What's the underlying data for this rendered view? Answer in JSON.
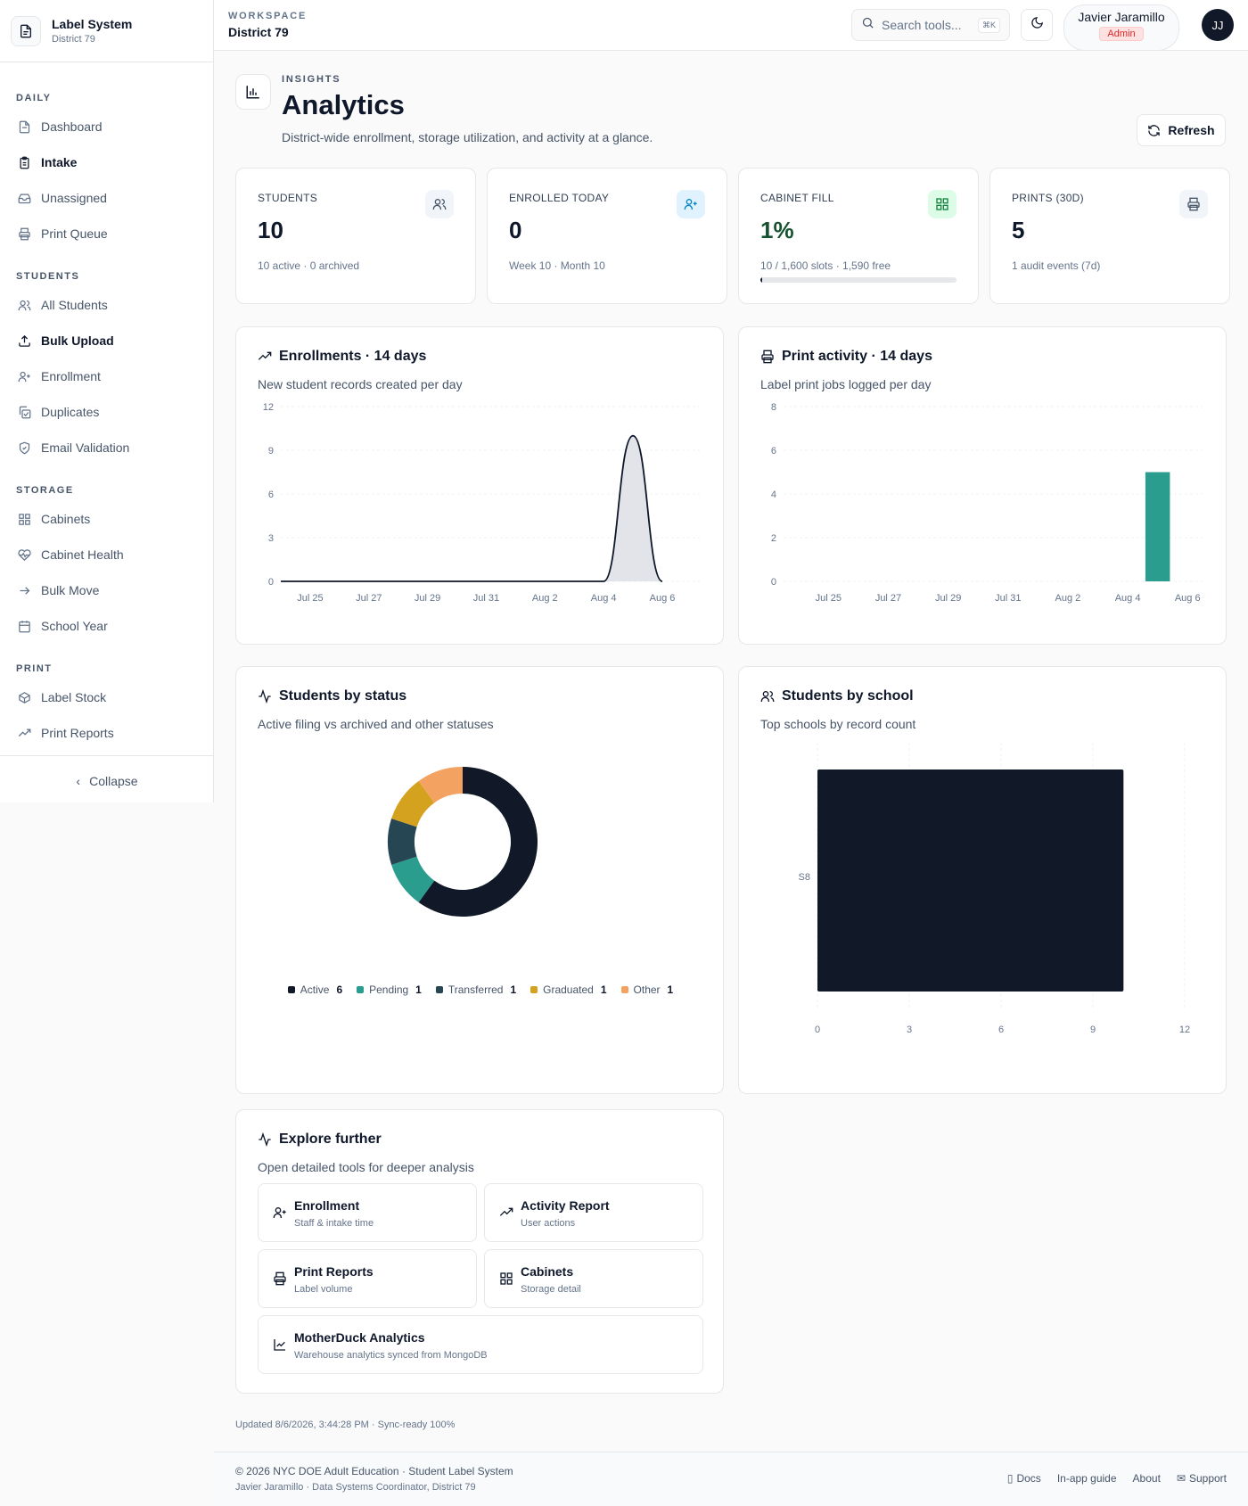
{
  "brand": {
    "title": "Label System",
    "subtitle": "District 79"
  },
  "sidebar": {
    "sections": [
      {
        "label": "DAILY",
        "items": [
          "Dashboard",
          "Intake",
          "Unassigned",
          "Print Queue"
        ]
      },
      {
        "label": "STUDENTS",
        "items": [
          "All Students",
          "Bulk Upload",
          "Enrollment",
          "Duplicates",
          "Email Validation"
        ]
      },
      {
        "label": "STORAGE",
        "items": [
          "Cabinets",
          "Cabinet Health",
          "Bulk Move",
          "School Year"
        ]
      },
      {
        "label": "PRINT",
        "items": [
          "Label Stock",
          "Print Reports"
        ]
      }
    ],
    "collapse_label": "Collapse"
  },
  "header": {
    "workspace_label": "WORKSPACE",
    "workspace_name": "District 79",
    "search_placeholder": "Search tools...",
    "search_kbd": "⌘K",
    "user_name": "Javier Jaramillo",
    "user_role": "Admin",
    "avatar_initials": "JJ"
  },
  "page": {
    "eyebrow": "INSIGHTS",
    "title": "Analytics",
    "description": "District-wide enrollment, storage utilization, and activity at a glance.",
    "refresh_label": "Refresh"
  },
  "kpis": [
    {
      "label": "STUDENTS",
      "value": "10",
      "sub": "10 active · 0 archived",
      "icon": "users-icon"
    },
    {
      "label": "ENROLLED TODAY",
      "value": "0",
      "sub": "Week 10 · Month 10",
      "icon": "user-plus-icon"
    },
    {
      "label": "CABINET FILL",
      "value": "1%",
      "sub": "10 / 1,600 slots · 1,590 free",
      "icon": "grid-icon",
      "fill_fraction": 0.00625
    },
    {
      "label": "PRINTS (30D)",
      "value": "5",
      "sub": "1 audit events (7d)",
      "icon": "printer-icon"
    }
  ],
  "cards": {
    "enrollments": {
      "title": "Enrollments · 14 days",
      "desc": "New student records created per day"
    },
    "prints": {
      "title": "Print activity · 14 days",
      "desc": "Label print jobs logged per day"
    },
    "status": {
      "title": "Students by status",
      "desc": "Active filing vs archived and other statuses"
    },
    "school": {
      "title": "Students by school",
      "desc": "Top schools by record count"
    },
    "explore": {
      "title": "Explore further",
      "desc": "Open detailed tools for deeper analysis"
    }
  },
  "chart_data": [
    {
      "type": "area",
      "x": [
        "Jul 24",
        "Jul 25",
        "Jul 26",
        "Jul 27",
        "Jul 28",
        "Jul 29",
        "Jul 30",
        "Jul 31",
        "Aug 1",
        "Aug 2",
        "Aug 3",
        "Aug 4",
        "Aug 5",
        "Aug 6"
      ],
      "tick_labels": [
        "Jul 25",
        "Jul 27",
        "Jul 29",
        "Jul 31",
        "Aug 2",
        "Aug 4",
        "Aug 6"
      ],
      "values": [
        0,
        0,
        0,
        0,
        0,
        0,
        0,
        0,
        0,
        0,
        0,
        0,
        10,
        0
      ],
      "ylim": [
        0,
        12
      ],
      "yticks": [
        0,
        3,
        6,
        9,
        12
      ],
      "grid": true
    },
    {
      "type": "bar",
      "x": [
        "Jul 24",
        "Jul 25",
        "Jul 26",
        "Jul 27",
        "Jul 28",
        "Jul 29",
        "Jul 30",
        "Jul 31",
        "Aug 1",
        "Aug 2",
        "Aug 3",
        "Aug 4",
        "Aug 5",
        "Aug 6"
      ],
      "tick_labels": [
        "Jul 25",
        "Jul 27",
        "Jul 29",
        "Jul 31",
        "Aug 2",
        "Aug 4",
        "Aug 6"
      ],
      "values": [
        0,
        0,
        0,
        0,
        0,
        0,
        0,
        0,
        0,
        0,
        0,
        0,
        5,
        0
      ],
      "ylim": [
        0,
        8
      ],
      "yticks": [
        0,
        2,
        4,
        6,
        8
      ],
      "color": "#2a9d8f",
      "grid": true
    },
    {
      "type": "pie",
      "donut": true,
      "slices": [
        {
          "label": "Active",
          "value": 6,
          "color": "#111827"
        },
        {
          "label": "Pending",
          "value": 1,
          "color": "#2a9d8f"
        },
        {
          "label": "Transferred",
          "value": 1,
          "color": "#264653"
        },
        {
          "label": "Graduated",
          "value": 1,
          "color": "#d4a21e"
        },
        {
          "label": "Other",
          "value": 1,
          "color": "#f4a261"
        }
      ],
      "legend": "bottom"
    },
    {
      "type": "bar",
      "orientation": "horizontal",
      "categories": [
        "S8"
      ],
      "values": [
        10
      ],
      "xlim": [
        0,
        12
      ],
      "xticks": [
        0,
        3,
        6,
        9,
        12
      ],
      "color": "#111827",
      "grid": true
    }
  ],
  "explore_tiles": [
    {
      "title": "Enrollment",
      "sub": "Staff & intake time",
      "icon": "user-plus-icon"
    },
    {
      "title": "Activity Report",
      "sub": "User actions",
      "icon": "trending-up-icon"
    },
    {
      "title": "Print Reports",
      "sub": "Label volume",
      "icon": "printer-icon"
    },
    {
      "title": "Cabinets",
      "sub": "Storage detail",
      "icon": "grid-icon"
    },
    {
      "title": "MotherDuck Analytics",
      "sub": "Warehouse analytics synced from MongoDB",
      "icon": "line-chart-icon"
    }
  ],
  "updated": "Updated 8/6/2026, 3:44:28 PM · Sync-ready 100%",
  "footer": {
    "line1": "© 2026 NYC DOE Adult Education · Student Label System",
    "line2": "Javier Jaramillo · Data Systems Coordinator, District 79",
    "links": [
      "Docs",
      "In-app guide",
      "About",
      "Support"
    ]
  },
  "colors": {
    "accent": "#0f172a",
    "teal": "#2a9d8f",
    "admin_badge": "#dc2626",
    "progress_track": "#e5e7eb"
  }
}
